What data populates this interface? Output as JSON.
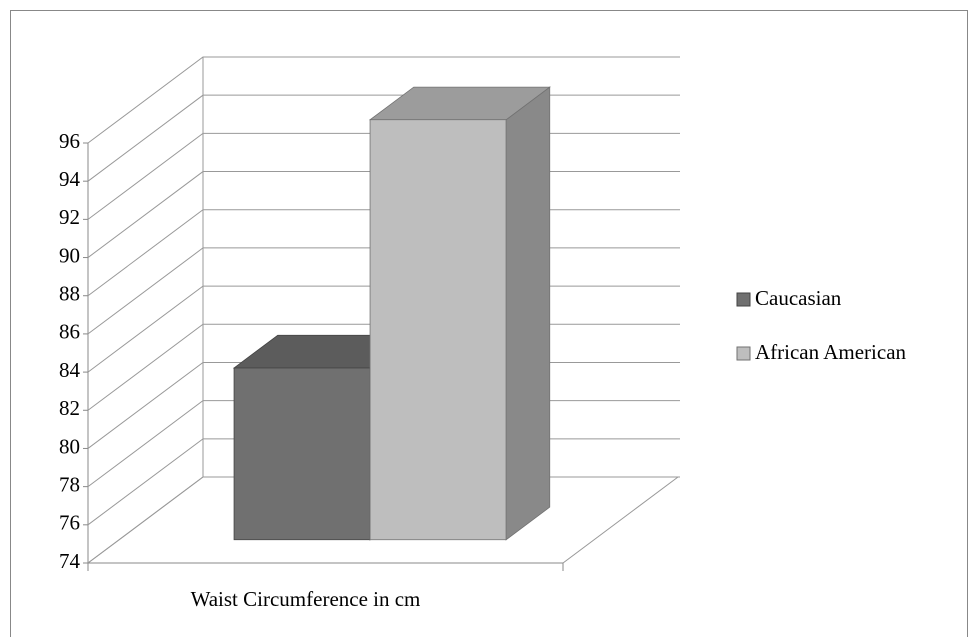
{
  "chart_data": {
    "type": "bar3d",
    "categories": [
      "Waist Circumference in cm"
    ],
    "series": [
      {
        "name": "Caucasian",
        "color": "#707070",
        "values": [
          83
        ]
      },
      {
        "name": "African American",
        "color": "#bebebe",
        "values": [
          96
        ]
      }
    ],
    "ylim": [
      74,
      96
    ],
    "yticks": [
      74,
      76,
      78,
      80,
      82,
      84,
      86,
      88,
      90,
      92,
      94,
      96
    ],
    "grid": true,
    "legend": "right"
  }
}
